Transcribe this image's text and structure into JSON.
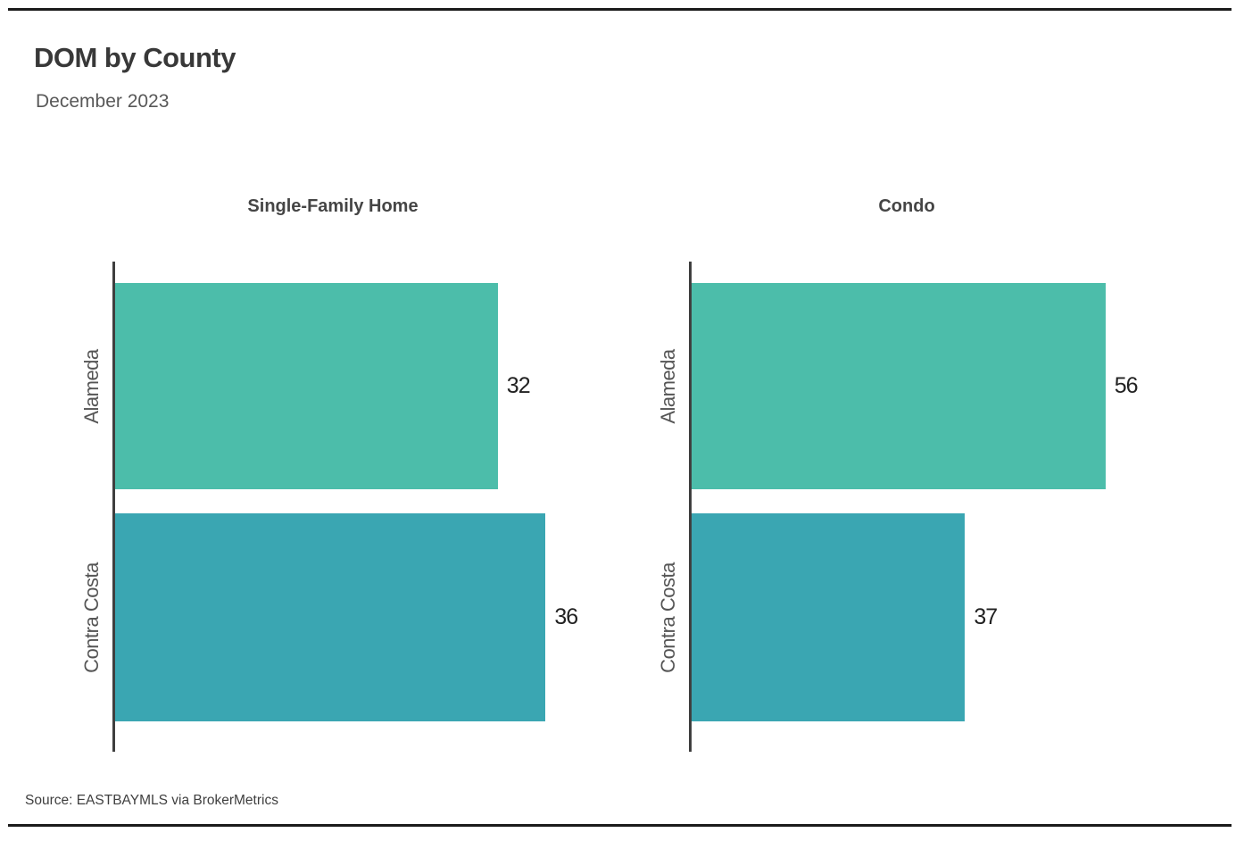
{
  "chart_data": {
    "type": "bar",
    "orientation": "horizontal",
    "title": "DOM by County",
    "subtitle": "December 2023",
    "source": "Source:  EASTBAYMLS via BrokerMetrics",
    "categories": [
      "Alameda",
      "Contra Costa"
    ],
    "grid": false,
    "legend": false,
    "panels": [
      {
        "title": "Single-Family Home",
        "xlim": [
          0,
          40
        ],
        "bars": [
          {
            "category": "Alameda",
            "value": 32,
            "color": "#4CBDAA"
          },
          {
            "category": "Contra Costa",
            "value": 36,
            "color": "#3AA6B2"
          }
        ]
      },
      {
        "title": "Condo",
        "xlim": [
          0,
          64
        ],
        "bars": [
          {
            "category": "Alameda",
            "value": 56,
            "color": "#4CBDAA"
          },
          {
            "category": "Contra Costa",
            "value": 37,
            "color": "#3AA6B2"
          }
        ]
      }
    ],
    "colors": {
      "alameda_bar": "#4CBDAA",
      "contra_costa_bar": "#3AA6B2",
      "axis_line": "#3F3F3F",
      "title_text": "#383838",
      "subtitle_text": "#585858",
      "value_text": "#222222",
      "rule": "#1B1B1B"
    }
  }
}
